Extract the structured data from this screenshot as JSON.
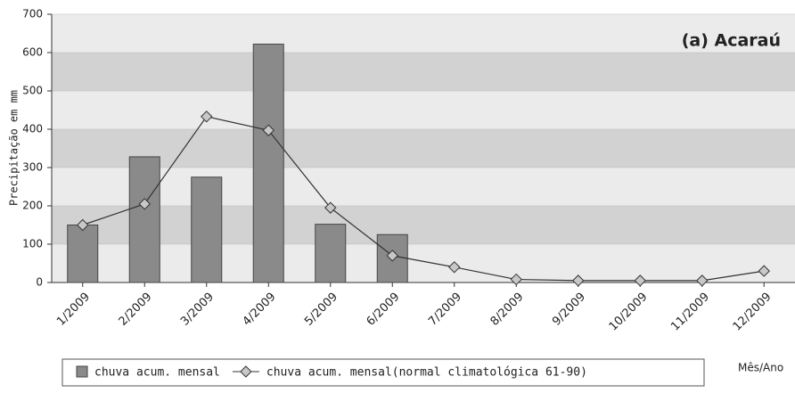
{
  "chart_data": {
    "type": "bar",
    "title": "(a) Acaraú",
    "y_label": "Precipitação em mm",
    "x_label": "Mês/Ano",
    "categories": [
      "1/2009",
      "2/2009",
      "3/2009",
      "4/2009",
      "5/2009",
      "6/2009",
      "7/2009",
      "8/2009",
      "9/2009",
      "10/2009",
      "11/2009",
      "12/2009"
    ],
    "series": [
      {
        "name": "chuva acum. mensal",
        "type": "bar",
        "color": "#8a8a8a",
        "values": [
          150,
          328,
          275,
          622,
          152,
          125,
          null,
          null,
          null,
          null,
          null,
          null
        ]
      },
      {
        "name": "chuva acum. mensal(normal climatológica 61-90)",
        "type": "line",
        "color": "#333333",
        "values": [
          150,
          205,
          433,
          397,
          195,
          70,
          40,
          8,
          5,
          5,
          5,
          30
        ]
      }
    ],
    "ylim": [
      0,
      700
    ],
    "yticks": [
      0,
      100,
      200,
      300,
      400,
      500,
      600,
      700
    ],
    "grid": true
  }
}
